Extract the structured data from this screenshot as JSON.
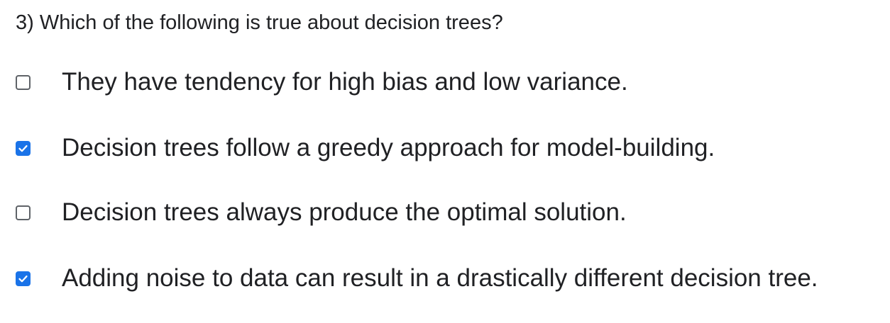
{
  "question": {
    "text": "3) Which of the following is true about decision trees?"
  },
  "options": [
    {
      "label": "They have tendency for high bias and low variance.",
      "checked": false
    },
    {
      "label": "Decision trees follow a greedy approach for model-building.",
      "checked": true
    },
    {
      "label": "Decision trees always produce the optimal solution.",
      "checked": false
    },
    {
      "label": "Adding noise to data can result in a drastically different decision tree.",
      "checked": true
    }
  ],
  "colors": {
    "checked_fill": "#1a73e8",
    "unchecked_border": "#5f6368",
    "text": "#202124"
  },
  "icons": {
    "checkmark": "check-icon"
  }
}
